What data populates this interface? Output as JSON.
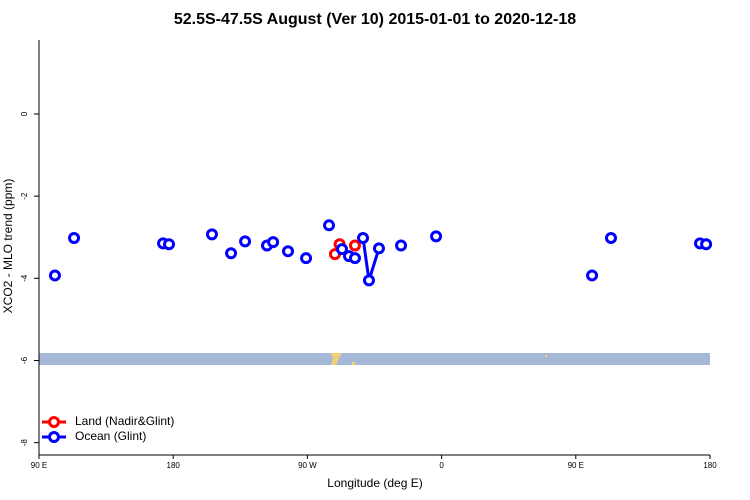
{
  "chart_data": {
    "type": "line",
    "title": "52.5S-47.5S August (Ver 10)   2015-01-01 to 2020-12-18",
    "xlabel": "Longitude (deg E)",
    "ylabel": "XCO2 - MLO trend (ppm)",
    "xlim": [
      90,
      540
    ],
    "ylim": [
      -8.3,
      1.8
    ],
    "xticks": [
      {
        "value": 90,
        "label": "90 E"
      },
      {
        "value": 180,
        "label": "180"
      },
      {
        "value": 270,
        "label": "90 W"
      },
      {
        "value": 360,
        "label": "0"
      },
      {
        "value": 450,
        "label": "90 E"
      },
      {
        "value": 540,
        "label": "180"
      }
    ],
    "yticks": [
      0,
      -2,
      -4,
      -6,
      -8
    ],
    "legend": "bottom-left",
    "series": [
      {
        "name": "Land (Nadir&Glint)",
        "color": "#ff0000",
        "x": [
          288.5,
          null,
          291.6,
          null,
          301.9
        ],
        "values": [
          -3.41,
          null,
          -3.17,
          null,
          -3.2
        ]
      },
      {
        "name": "Ocean (Glint)",
        "color": "#0000ff",
        "x": [
          100.7,
          null,
          113.5,
          null,
          173.2,
          null,
          177.2,
          null,
          206,
          null,
          218.8,
          null,
          228.2,
          null,
          242.9,
          null,
          247,
          null,
          257,
          null,
          269.1,
          null,
          284.5,
          null,
          293.2,
          null,
          297.9,
          null,
          301.9,
          null,
          307.3,
          311.3,
          318,
          null,
          332.8,
          null,
          356.3,
          null,
          460.9,
          null,
          473.6,
          null,
          533.3,
          null,
          537.4
        ],
        "values": [
          -3.93,
          null,
          -3.02,
          null,
          -3.15,
          null,
          -3.17,
          null,
          -2.93,
          null,
          -3.39,
          null,
          -3.1,
          null,
          -3.2,
          null,
          -3.12,
          null,
          -3.34,
          null,
          -3.51,
          null,
          -2.71,
          null,
          -3.29,
          null,
          -3.46,
          null,
          -3.51,
          null,
          -3.02,
          -4.05,
          -3.27,
          null,
          -3.2,
          null,
          -2.98,
          null,
          -3.93,
          null,
          -3.02,
          null,
          -3.15,
          null,
          -3.17
        ]
      }
    ]
  }
}
